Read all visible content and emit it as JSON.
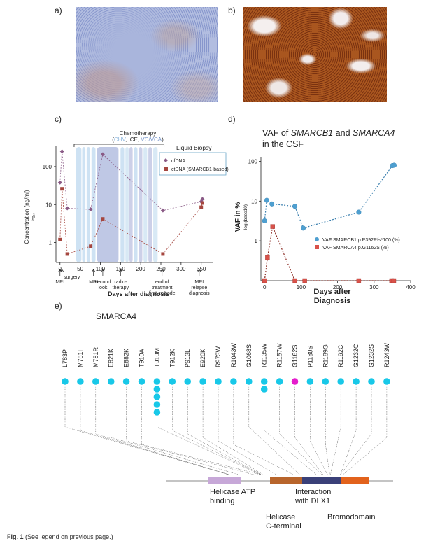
{
  "panels": {
    "a": "a)",
    "b": "b)",
    "c": "c)",
    "d": "d)",
    "e": "e)"
  },
  "caption": {
    "label": "Fig. 1",
    "text": "(See legend on previous page.)"
  },
  "colors": {
    "ihc_blue": "#7e90c4",
    "ihc_brown": "#8a3d14",
    "cfdna": "#8a5a86",
    "ctdna": "#a5463f",
    "smarcb1": "#4e9fd0",
    "smarca4": "#d9524a",
    "lollipop": "#18c8e8",
    "lollipop_special": "#e51ccc"
  },
  "panel_c": {
    "therapy_title": "Chemotherapy",
    "therapy_regimens": {
      "a": "CHV",
      "b": "ICE",
      "c": "VC/VCA"
    },
    "legend_title": "Liquid Biopsy",
    "legend": [
      "cfDNA",
      "ctDNA (SMARCB1-based)"
    ],
    "ylabel": "Concentration (ng/ml)",
    "ylabel_sub": "log₁₀",
    "xlabel": "Days after diagnosis",
    "yticks": [
      "1",
      "10",
      "100"
    ],
    "xticks": [
      "0",
      "50",
      "100",
      "150",
      "200",
      "250",
      "300",
      "350"
    ],
    "events": [
      {
        "label": "surgery",
        "day": 5
      },
      {
        "label": "MRI",
        "day": 0
      },
      {
        "label": "MRI",
        "day": 83
      },
      {
        "label": "second look",
        "day": 106
      },
      {
        "label": "radio-therapy",
        "day": 150
      },
      {
        "label": "end of treatment first episode",
        "day": 253
      },
      {
        "label": "MRI relapse diagnosis",
        "day": 345
      }
    ]
  },
  "chart_data": [
    {
      "type": "line",
      "xlabel": "Days after diagnosis",
      "ylabel": "Concentration (ng/ml) log₁₀",
      "yscale": "log",
      "xlim": [
        -10,
        380
      ],
      "ylim": [
        0.3,
        300
      ],
      "legend_placement": "top-right",
      "series": [
        {
          "name": "cfDNA",
          "x": [
            0,
            5,
            18,
            76,
            106,
            255,
            350,
            353
          ],
          "y": [
            38,
            250,
            8,
            7.5,
            210,
            7,
            12,
            14
          ]
        },
        {
          "name": "ctDNA (SMARCB1-based)",
          "x": [
            0,
            5,
            18,
            76,
            106,
            255,
            350,
            353
          ],
          "y": [
            1.2,
            26,
            0.5,
            0.8,
            4.2,
            0.5,
            8.5,
            11
          ]
        }
      ]
    },
    {
      "type": "line",
      "title_parts": [
        "VAF of ",
        "SMARCB1",
        " and ",
        "SMARCA4",
        " in the CSF"
      ],
      "xlabel": "Days after Diagnosis",
      "ylabel": "VAF in %",
      "ylabel_sub": "log (base10)",
      "yscale": "log",
      "xlim": [
        -10,
        400
      ],
      "ylim": [
        0.1,
        130
      ],
      "xticks": [
        "0",
        "100",
        "200",
        "300",
        "400"
      ],
      "yticks": [
        "1",
        "10",
        "100"
      ],
      "legend_placement": "bottom-right",
      "series": [
        {
          "name": "VAF SMARCB1 p.P392Rfs*100 (%)",
          "x": [
            0,
            6,
            20,
            83,
            106,
            258,
            350,
            355
          ],
          "y": [
            3.2,
            10.5,
            8.5,
            7.4,
            2.1,
            5.3,
            78,
            80
          ]
        },
        {
          "name": "VAF SMARCA4 p.G1162S (%)",
          "x": [
            0,
            8,
            22,
            83,
            110,
            258,
            348,
            354
          ],
          "y": [
            0.1,
            0.38,
            2.3,
            0.1,
            0.1,
            0.1,
            0.1,
            0.1
          ]
        }
      ]
    },
    {
      "type": "lollipop",
      "gene": "SMARCA4",
      "mutations": [
        {
          "label": "L783P",
          "count": 1,
          "pos": 783
        },
        {
          "label": "M781I",
          "count": 1,
          "pos": 781
        },
        {
          "label": "M781R",
          "count": 1,
          "pos": 781
        },
        {
          "label": "E821K",
          "count": 1,
          "pos": 821
        },
        {
          "label": "E882K",
          "count": 1,
          "pos": 882
        },
        {
          "label": "T910A",
          "count": 1,
          "pos": 910
        },
        {
          "label": "T910M",
          "count": 5,
          "pos": 910
        },
        {
          "label": "T912K",
          "count": 1,
          "pos": 912
        },
        {
          "label": "P913L",
          "count": 1,
          "pos": 913
        },
        {
          "label": "E920K",
          "count": 1,
          "pos": 920
        },
        {
          "label": "R973W",
          "count": 1,
          "pos": 973
        },
        {
          "label": "R1043W",
          "count": 1,
          "pos": 1043
        },
        {
          "label": "G1068S",
          "count": 1,
          "pos": 1068
        },
        {
          "label": "R1135W",
          "count": 2,
          "pos": 1135
        },
        {
          "label": "R1157W",
          "count": 1,
          "pos": 1157
        },
        {
          "label": "G1162S",
          "count": 1,
          "pos": 1162,
          "highlight": true
        },
        {
          "label": "P1180S",
          "count": 1,
          "pos": 1180
        },
        {
          "label": "R1189G",
          "count": 1,
          "pos": 1189
        },
        {
          "label": "R1192C",
          "count": 1,
          "pos": 1192
        },
        {
          "label": "G1232C",
          "count": 1,
          "pos": 1232
        },
        {
          "label": "G1232S",
          "count": 1,
          "pos": 1232
        },
        {
          "label": "R1243W",
          "count": 1,
          "pos": 1243
        }
      ],
      "domains": [
        {
          "label": "Helicase ATP binding",
          "color": "#c7a8d8"
        },
        {
          "label": "Helicase C-terminal",
          "color": "#b8652c"
        },
        {
          "label": "Interaction with DLX1",
          "color": "#3a4078"
        },
        {
          "label": "Bromodomain",
          "color": "#e2621c"
        }
      ]
    }
  ]
}
